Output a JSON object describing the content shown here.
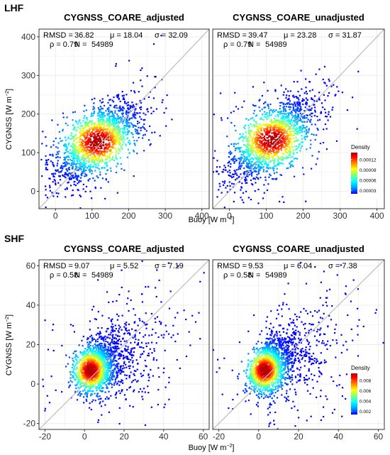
{
  "figure": {
    "sections": [
      {
        "label": "LHF",
        "xlabel": "Buoy [W m",
        "xlabel_sup": "−2",
        "xlabel_end": "]",
        "ylabel": "CYGNSS [W m",
        "ylabel_sup": "−2",
        "ylabel_end": "]"
      },
      {
        "label": "SHF",
        "xlabel": "Buoy [W m",
        "xlabel_sup": "−2",
        "xlabel_end": "]",
        "ylabel": "CYGNSS [W m",
        "ylabel_sup": "−2",
        "ylabel_end": "]"
      }
    ],
    "colors": {
      "density_scale": [
        "#0000ff",
        "#00a0ff",
        "#00ffff",
        "#7fff7f",
        "#ffff00",
        "#ff8000",
        "#ff0000",
        "#b40000"
      ],
      "panel_border": "#333333",
      "grid": "#ebebeb",
      "identity_line": "#bdbdbd"
    }
  },
  "chart_data": [
    {
      "type": "scatter",
      "subtype": "density-scatter",
      "section": "LHF",
      "title": "CYGNSS_COARE_adjusted",
      "xlim": [
        -45,
        420
      ],
      "ylim": [
        -45,
        420
      ],
      "xticks": [
        0,
        100,
        200,
        300,
        400
      ],
      "yticks": [
        0,
        100,
        200,
        300,
        400
      ],
      "identity_line": true,
      "grid": true,
      "stats": {
        "line1": [
          "RMSD =",
          "36.82",
          "μ = 18.04",
          "σ = 32.09"
        ],
        "line2": [
          "ρ = 0.79",
          "N =",
          "54989"
        ]
      },
      "n_points": 54989,
      "density_peak": {
        "x": 115,
        "y": 128
      }
    },
    {
      "type": "scatter",
      "subtype": "density-scatter",
      "section": "LHF",
      "title": "CYGNSS_COARE_unadjusted",
      "xlim": [
        -45,
        420
      ],
      "ylim": [
        -45,
        420
      ],
      "xticks": [
        0,
        100,
        200,
        300,
        400
      ],
      "yticks": [
        0,
        100,
        200,
        300,
        400
      ],
      "identity_line": true,
      "grid": true,
      "stats": {
        "line1": [
          "RMSD =",
          "39.47",
          "μ = 23.28",
          "σ = 31.87"
        ],
        "line2": [
          "ρ = 0.79",
          "N =",
          "54989"
        ]
      },
      "n_points": 54989,
      "density_peak": {
        "x": 115,
        "y": 133
      },
      "legend": {
        "title": "Density",
        "ticks": [
          "0.00012",
          "0.00009",
          "0.00006",
          "0.00003"
        ],
        "position": "bottom-right"
      }
    },
    {
      "type": "scatter",
      "subtype": "density-scatter",
      "section": "SHF",
      "title": "CYGNSS_COARE_adjusted",
      "xlim": [
        -23,
        63
      ],
      "ylim": [
        -23,
        63
      ],
      "xticks": [
        -20,
        0,
        20,
        40,
        60
      ],
      "yticks": [
        -20,
        0,
        20,
        40,
        60
      ],
      "identity_line": true,
      "grid": true,
      "stats": {
        "line1": [
          "RMSD =",
          "9.07",
          "μ = 5.52",
          "σ = 7.19"
        ],
        "line2": [
          "ρ = 0.58",
          "N =",
          "54989"
        ]
      },
      "n_points": 54989,
      "density_peak": {
        "x": 3,
        "y": 7
      }
    },
    {
      "type": "scatter",
      "subtype": "density-scatter",
      "section": "SHF",
      "title": "CYGNSS_COARE_unadjusted",
      "xlim": [
        -23,
        63
      ],
      "ylim": [
        -23,
        63
      ],
      "xticks": [
        -20,
        0,
        20,
        40,
        60
      ],
      "yticks": [
        -20,
        0,
        20,
        40,
        60
      ],
      "identity_line": true,
      "grid": true,
      "stats": {
        "line1": [
          "RMSD =",
          "9.53",
          "μ = 6.04",
          "σ = 7.38"
        ],
        "line2": [
          "ρ = 0.58",
          "N =",
          "54989"
        ]
      },
      "n_points": 54989,
      "density_peak": {
        "x": 3,
        "y": 7
      },
      "legend": {
        "title": "Density",
        "ticks": [
          "0.008",
          "0.006",
          "0.004",
          "0.002"
        ],
        "position": "bottom-right"
      }
    }
  ]
}
